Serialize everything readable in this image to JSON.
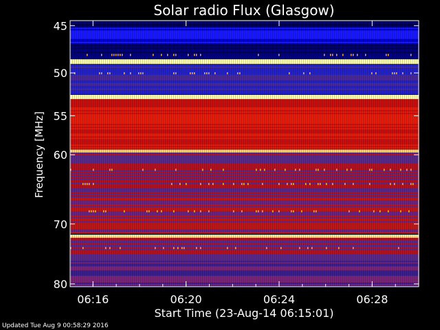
{
  "chart_data": {
    "type": "heatmap",
    "title": "Solar radio Flux (Glasgow)",
    "xlabel": "Start Time (23-Aug-14 06:15:01)",
    "ylabel": "Frequency [MHz]",
    "x_ticks": [
      "06:16",
      "06:20",
      "06:24",
      "06:28"
    ],
    "y_ticks": [
      45,
      50,
      55,
      60,
      70,
      80
    ],
    "y_scale": "log",
    "ylim": [
      44.5,
      80.5
    ],
    "xlim_minutes_after_0615": [
      0.017,
      15.0
    ],
    "colormap": [
      "#000066",
      "#0000ff",
      "#5a2a8a",
      "#cc0000",
      "#ff2200",
      "#ff8800",
      "#ffff99"
    ],
    "bands_mhz": [
      {
        "from": 44.5,
        "to": 45.2,
        "level": "dark-blue"
      },
      {
        "from": 45.2,
        "to": 46.8,
        "level": "blue"
      },
      {
        "from": 46.8,
        "to": 48.4,
        "level": "dark-blue"
      },
      {
        "from": 48.5,
        "to": 49.0,
        "level": "bright"
      },
      {
        "from": 49.0,
        "to": 52.4,
        "level": "blue-purple"
      },
      {
        "from": 52.5,
        "to": 53.0,
        "level": "bright"
      },
      {
        "from": 53.0,
        "to": 59.2,
        "level": "red"
      },
      {
        "from": 59.3,
        "to": 59.7,
        "level": "bright"
      },
      {
        "from": 59.7,
        "to": 66.0,
        "level": "red-purple"
      },
      {
        "from": 66.0,
        "to": 71.5,
        "level": "purple-red"
      },
      {
        "from": 71.7,
        "to": 72.2,
        "level": "bright"
      },
      {
        "from": 72.2,
        "to": 76.0,
        "level": "red-purple"
      },
      {
        "from": 76.0,
        "to": 80.5,
        "level": "purple"
      }
    ]
  },
  "footer": "Updated Tue Aug  9 00:58:29 2016"
}
